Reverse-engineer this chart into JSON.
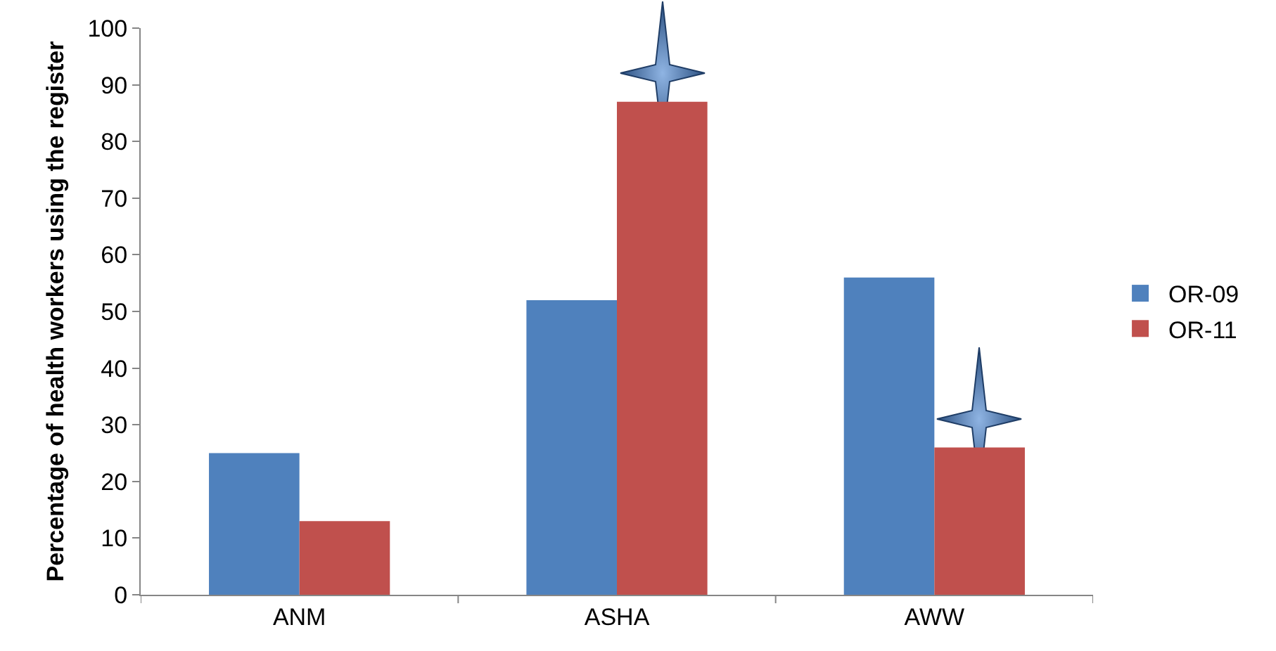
{
  "chart_data": {
    "type": "bar",
    "ylabel": "Percentage of health workers using the register",
    "categories": [
      "ANM",
      "ASHA",
      "AWW"
    ],
    "series": [
      {
        "name": "OR-09",
        "color": "#4f81bd",
        "values": [
          25,
          52,
          56
        ]
      },
      {
        "name": "OR-11",
        "color": "#c0504d",
        "values": [
          13,
          87,
          26
        ]
      }
    ],
    "ylim": [
      0,
      100
    ],
    "yticks": [
      0,
      10,
      20,
      30,
      40,
      50,
      60,
      70,
      80,
      90,
      100
    ],
    "grid": false,
    "legend": "right"
  }
}
